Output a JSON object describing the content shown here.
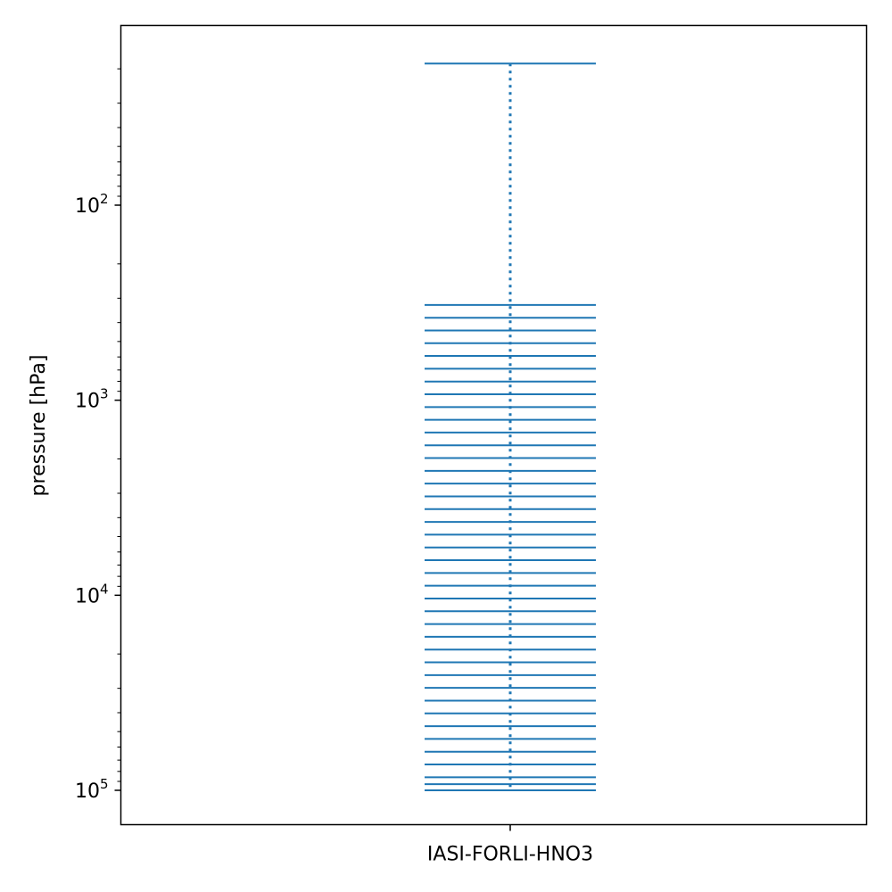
{
  "chart_data": {
    "type": "scatter",
    "title": "",
    "xlabel": "",
    "ylabel": "pressure [hPa]",
    "yscale": "log",
    "yaxis_inverted": true,
    "ylim": [
      100000,
      17
    ],
    "categories": [
      "IASI-FORLI-HNO3"
    ],
    "grid": false,
    "legend": "none",
    "colors": {
      "series": "#1f77b4",
      "axes": "#000000"
    },
    "yticks": [
      {
        "base": "10",
        "exp": "2",
        "value": 100
      },
      {
        "base": "10",
        "exp": "3",
        "value": 1000
      },
      {
        "base": "10",
        "exp": "4",
        "value": 10000
      },
      {
        "base": "10",
        "exp": "5",
        "value": 100000
      }
    ],
    "series": [
      {
        "category": "IASI-FORLI-HNO3",
        "marker": "hline",
        "connector": "dotted",
        "pressure_levels_hPa": [
          18.8,
          325,
          378,
          439,
          510,
          593,
          690,
          802,
          932,
          1084,
          1260,
          1465,
          1703,
          1980,
          2302,
          2677,
          3112,
          3618,
          4206,
          4890,
          5686,
          6610,
          7686,
          8936,
          10389,
          12079,
          14044,
          16328,
          18984,
          22071,
          25661,
          29835,
          34688,
          40329,
          46889,
          54515,
          63382,
          73690,
          85675,
          93000,
          100000
        ]
      }
    ]
  }
}
